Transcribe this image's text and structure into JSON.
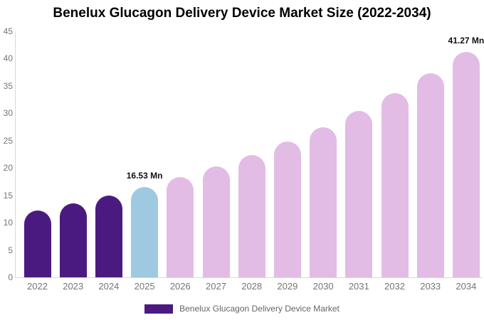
{
  "title": "Benelux Glucagon Delivery Device Market Size (2022-2034)",
  "chart_data": {
    "type": "bar",
    "title": "Benelux Glucagon Delivery Device Market Size (2022-2034)",
    "categories": [
      "2022",
      "2023",
      "2024",
      "2025",
      "2026",
      "2027",
      "2028",
      "2029",
      "2030",
      "2031",
      "2032",
      "2033",
      "2034"
    ],
    "values": [
      12.19,
      13.49,
      14.93,
      16.53,
      18.3,
      20.26,
      22.43,
      24.83,
      27.49,
      30.43,
      33.69,
      37.29,
      41.27
    ],
    "unit": "Mn",
    "xlabel": "",
    "ylabel": "",
    "ylim": [
      0,
      45
    ],
    "ytick_step": 5,
    "grid": false,
    "legend_position": "bottom",
    "bar_groups": [
      "historical",
      "historical",
      "historical",
      "highlight",
      "forecast",
      "forecast",
      "forecast",
      "forecast",
      "forecast",
      "forecast",
      "forecast",
      "forecast",
      "forecast"
    ],
    "colors": {
      "historical": "#4B1A80",
      "highlight": "#9FC9E1",
      "forecast": "#E2BCE5"
    },
    "axis_color": "#d9d9d9",
    "tick_label_color": "#757575",
    "annotations": [
      {
        "category": "2025",
        "label": "16.53 Mn"
      },
      {
        "category": "2034",
        "label": "41.27 Mn"
      }
    ]
  },
  "legend": {
    "label": "Benelux Glucagon Delivery Device Market",
    "swatch_color": "#4B1A80"
  }
}
